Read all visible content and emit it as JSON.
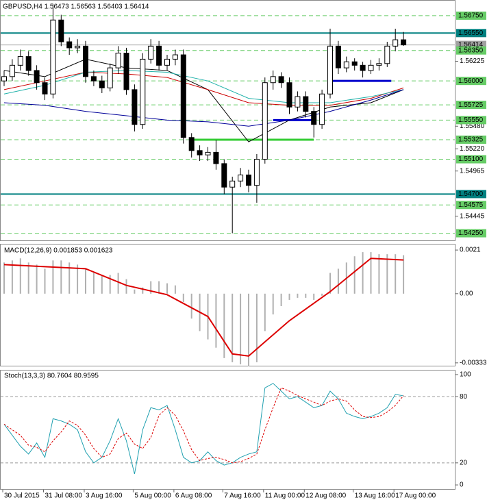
{
  "chart_data": [
    {
      "type": "candlestick",
      "title": "GBPUSD,H4  1.56473 1.56563 1.56403 1.56414",
      "categories": [
        "30 Jul 2015",
        null,
        null,
        null,
        null,
        "31 Jul 08:00",
        null,
        null,
        null,
        null,
        "3 Aug 16:00",
        null,
        null,
        null,
        null,
        null,
        "5 Aug 00:00",
        null,
        null,
        null,
        null,
        "6 Aug 08:00",
        null,
        null,
        null,
        null,
        null,
        "7 Aug 16:00",
        null,
        null,
        null,
        null,
        "11 Aug 00:00",
        null,
        null,
        null,
        null,
        "12 Aug 08:00",
        null,
        null,
        null,
        null,
        null,
        "13 Aug 16:00",
        null,
        null,
        null,
        null,
        "17 Aug 00:00",
        null
      ],
      "open": [
        1.56,
        1.5605,
        1.5618,
        1.5628,
        1.5612,
        1.5598,
        1.5585,
        1.567,
        1.5645,
        1.5638,
        1.564,
        1.5605,
        1.56,
        1.5592,
        1.5615,
        1.5632,
        1.559,
        1.555,
        1.5625,
        1.564,
        1.5618,
        1.5625,
        1.563,
        1.5535,
        1.552,
        1.5515,
        1.5518,
        1.5505,
        1.5478,
        1.5485,
        1.5492,
        1.548,
        1.551,
        1.5598,
        1.5605,
        1.5598,
        1.557,
        1.5582,
        1.5565,
        1.555,
        1.5585,
        1.564,
        1.5615,
        1.5622,
        1.5618,
        1.5612,
        1.5618,
        1.562,
        1.564,
        1.56473
      ],
      "high": [
        1.5612,
        1.5625,
        1.5636,
        1.5634,
        1.5618,
        1.5604,
        1.5688,
        1.5676,
        1.565,
        1.5648,
        1.5646,
        1.5612,
        1.5606,
        1.562,
        1.564,
        1.5638,
        1.5596,
        1.5632,
        1.5648,
        1.5646,
        1.563,
        1.5636,
        1.5636,
        1.554,
        1.5526,
        1.5524,
        1.5532,
        1.551,
        1.549,
        1.55,
        1.5498,
        1.5516,
        1.5604,
        1.5612,
        1.561,
        1.5604,
        1.5588,
        1.5588,
        1.557,
        1.559,
        1.566,
        1.5646,
        1.5628,
        1.5626,
        1.5622,
        1.5624,
        1.5626,
        1.5645,
        1.566,
        1.56563
      ],
      "low": [
        1.5594,
        1.56,
        1.5612,
        1.5606,
        1.559,
        1.5578,
        1.558,
        1.564,
        1.563,
        1.5632,
        1.5598,
        1.5594,
        1.5586,
        1.5588,
        1.5608,
        1.5584,
        1.5542,
        1.5545,
        1.562,
        1.5612,
        1.5612,
        1.5618,
        1.5528,
        1.5512,
        1.5508,
        1.5508,
        1.5498,
        1.547,
        1.5425,
        1.5478,
        1.5472,
        1.546,
        1.5505,
        1.559,
        1.5592,
        1.5562,
        1.5565,
        1.5558,
        1.5535,
        1.5545,
        1.558,
        1.5608,
        1.561,
        1.5612,
        1.5604,
        1.5608,
        1.5612,
        1.5616,
        1.5634,
        1.56403
      ],
      "close": [
        1.5605,
        1.5618,
        1.5628,
        1.5612,
        1.5598,
        1.5585,
        1.567,
        1.5645,
        1.5638,
        1.564,
        1.5605,
        1.56,
        1.5592,
        1.5615,
        1.5632,
        1.559,
        1.555,
        1.5625,
        1.564,
        1.5618,
        1.5625,
        1.563,
        1.5535,
        1.552,
        1.5515,
        1.5518,
        1.5505,
        1.5478,
        1.5485,
        1.5492,
        1.548,
        1.551,
        1.5598,
        1.5605,
        1.5598,
        1.557,
        1.5582,
        1.5565,
        1.555,
        1.5585,
        1.564,
        1.5615,
        1.5622,
        1.5618,
        1.5612,
        1.5618,
        1.562,
        1.564,
        1.56473,
        1.56414
      ],
      "up_color": "#ffffff",
      "down_color": "#000000",
      "ylim": [
        1.5416,
        1.5693
      ],
      "yticks": [
        {
          "value": 1.56225,
          "label": "1.56225"
        },
        {
          "value": 1.5548,
          "label": "1.55480"
        },
        {
          "value": 1.5522,
          "label": "1.55220"
        },
        {
          "value": 1.54965,
          "label": "1.54965"
        },
        {
          "value": 1.54445,
          "label": "1.54445"
        }
      ],
      "levels": [
        {
          "value": 1.5675,
          "label": "1.56750",
          "color": "#66cc66",
          "style": "dashed"
        },
        {
          "value": 1.5655,
          "label": "1.56550",
          "color": "#008080",
          "style": "solid"
        },
        {
          "value": 1.56414,
          "label": "1.56414",
          "color": "#a0a0a0",
          "style": "solid"
        },
        {
          "value": 1.5635,
          "label": "1.56350",
          "color": "#66cc66",
          "style": "dashed"
        },
        {
          "value": 1.56,
          "label": "1.56000",
          "color": "#66cc66",
          "style": "dashed"
        },
        {
          "value": 1.55725,
          "label": "1.55725",
          "color": "#66cc66",
          "style": "dashed"
        },
        {
          "value": 1.5555,
          "label": "1.55550",
          "color": "#66cc66",
          "style": "dashed"
        },
        {
          "value": 1.55325,
          "label": "1.55325",
          "color": "#66cc66",
          "style": "dashed"
        },
        {
          "value": 1.551,
          "label": "1.55100",
          "color": "#66cc66",
          "style": "dashed"
        },
        {
          "value": 1.547,
          "label": "1.54700",
          "color": "#008080",
          "style": "solid"
        },
        {
          "value": 1.54575,
          "label": "1.54575",
          "color": "#66cc66",
          "style": "dashed"
        },
        {
          "value": 1.5425,
          "label": "1.54250",
          "color": "#66cc66",
          "style": "dashed"
        }
      ],
      "segments": [
        {
          "value": 1.55325,
          "from": 23,
          "to": 38,
          "color": "#33cc33"
        },
        {
          "value": 1.5555,
          "from": 33,
          "to": 38,
          "color": "#0000cc"
        },
        {
          "value": 1.56,
          "from": 40,
          "to": 47.5,
          "color": "#0000cc"
        }
      ],
      "series": [
        {
          "color": "#000000",
          "x": [
            0,
            5,
            10,
            15,
            20,
            25,
            30,
            35,
            40,
            45,
            49
          ],
          "values": [
            1.5612,
            1.5605,
            1.5625,
            1.5615,
            1.5612,
            1.559,
            1.553,
            1.5555,
            1.557,
            1.5575,
            1.559
          ]
        },
        {
          "color": "#cc0000",
          "x": [
            0,
            5,
            10,
            15,
            20,
            25,
            30,
            35,
            40,
            45,
            49
          ],
          "values": [
            1.559,
            1.56,
            1.561,
            1.5608,
            1.5604,
            1.559,
            1.5575,
            1.5572,
            1.5572,
            1.558,
            1.5592
          ]
        },
        {
          "color": "#20b2aa",
          "x": [
            0,
            5,
            10,
            15,
            20,
            25,
            30,
            35,
            40,
            45,
            49
          ],
          "values": [
            1.5585,
            1.5595,
            1.561,
            1.5612,
            1.561,
            1.56,
            1.558,
            1.5575,
            1.5575,
            1.5582,
            1.559
          ]
        },
        {
          "color": "#000099",
          "x": [
            0,
            5,
            10,
            15,
            20,
            25,
            30,
            35,
            40,
            45,
            49
          ],
          "values": [
            1.5575,
            1.5572,
            1.5565,
            1.556,
            1.5555,
            1.5553,
            1.5548,
            1.5555,
            1.5565,
            1.5578,
            1.559
          ]
        }
      ]
    },
    {
      "type": "bar",
      "title": "MACD(12,26,9) 0.001853 0.001623",
      "values": [
        0.0015,
        0.0016,
        0.0017,
        0.0015,
        0.0014,
        0.0012,
        0.0016,
        0.0016,
        0.0015,
        0.0014,
        0.0012,
        0.001,
        0.0009,
        0.0009,
        0.001,
        0.0007,
        0.0002,
        0.0003,
        0.0006,
        0.0006,
        0.0005,
        0.0004,
        -0.0004,
        -0.0012,
        -0.0018,
        -0.0022,
        -0.0026,
        -0.0031,
        -0.0033,
        -0.0034,
        -0.0035,
        -0.0033,
        -0.0018,
        -0.001,
        -0.0006,
        -0.0003,
        -0.0002,
        -0.0002,
        -0.0003,
        -0.0001,
        0.001,
        0.0012,
        0.0015,
        0.0018,
        0.002,
        0.002,
        0.0019,
        0.0019,
        0.0019,
        0.001853
      ],
      "color": "#b0b0b0",
      "ylim": [
        -0.0035,
        0.0024
      ],
      "yticks": [
        0.0021,
        {
          "value": 0,
          "label": "0.00"
        },
        {
          "value": -0.00333,
          "label": "-0.00333"
        }
      ],
      "series": [
        {
          "color": "#dd0000",
          "x": [
            0,
            5,
            10,
            15,
            20,
            25,
            28,
            30,
            35,
            40,
            45,
            49
          ],
          "values": [
            0.0014,
            0.0013,
            0.0012,
            0.0004,
            -5e-05,
            -0.0011,
            -0.0029,
            -0.003,
            -0.0013,
            0.0001,
            0.0017,
            0.001623
          ]
        }
      ]
    },
    {
      "type": "line",
      "title": "Stoch(13,3,3) 80.7604 80.9595",
      "ylim": [
        -4.3,
        104.3
      ],
      "yticks": [
        100,
        80,
        20,
        0
      ],
      "levels": [
        80,
        20
      ],
      "series": [
        {
          "color": "#20a0b0",
          "dash": false,
          "values": [
            55,
            45,
            35,
            28,
            38,
            25,
            60,
            58,
            55,
            50,
            30,
            20,
            25,
            40,
            60,
            40,
            10,
            50,
            70,
            68,
            72,
            50,
            25,
            20,
            22,
            30,
            22,
            18,
            20,
            25,
            28,
            30,
            88,
            92,
            85,
            78,
            80,
            75,
            70,
            72,
            85,
            78,
            65,
            62,
            60,
            62,
            65,
            70,
            82,
            80.7604
          ]
        },
        {
          "color": "#dd0000",
          "dash": true,
          "values": [
            55,
            50,
            45,
            36,
            34,
            30,
            40,
            48,
            58,
            54,
            45,
            33,
            25,
            28,
            42,
            47,
            37,
            33,
            43,
            63,
            70,
            63,
            49,
            32,
            22,
            24,
            25,
            23,
            20,
            21,
            24,
            28,
            50,
            70,
            88,
            85,
            81,
            78,
            75,
            72,
            76,
            78,
            76,
            68,
            62,
            61,
            62,
            66,
            72,
            80.9595
          ]
        }
      ]
    }
  ]
}
